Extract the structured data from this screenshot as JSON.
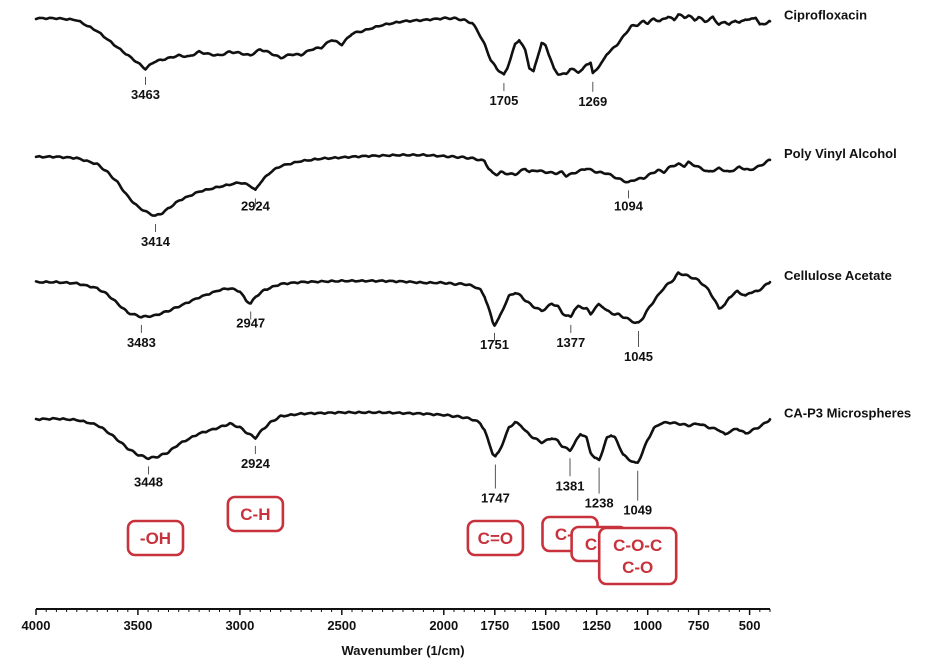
{
  "chart_data": {
    "type": "line",
    "xlabel": "Wavenumber (1/cm)",
    "xlim": [
      4000,
      400
    ],
    "x_reversed": true,
    "x_ticks": [
      4000,
      3500,
      3000,
      2500,
      2000,
      1750,
      1500,
      1250,
      1000,
      750,
      500
    ],
    "y_axis_shown": false,
    "grid": false,
    "legend": "series names at right end of each trace",
    "colors": {
      "trace": "#111111",
      "group_box": "#c8323c"
    },
    "series": [
      {
        "name": "Ciprofloxacin",
        "peak_labels": [
          "3463",
          "1705",
          "1269"
        ],
        "peaks": [
          3463,
          1705,
          1269
        ],
        "x": [
          4000,
          3900,
          3800,
          3700,
          3600,
          3520,
          3463,
          3420,
          3380,
          3300,
          3250,
          3200,
          3150,
          3100,
          3050,
          3000,
          2950,
          2900,
          2850,
          2800,
          2750,
          2700,
          2650,
          2600,
          2550,
          2500,
          2450,
          2400,
          2300,
          2200,
          2100,
          2000,
          1950,
          1900,
          1860,
          1830,
          1800,
          1770,
          1740,
          1720,
          1705,
          1690,
          1670,
          1650,
          1630,
          1600,
          1580,
          1560,
          1540,
          1520,
          1500,
          1480,
          1460,
          1440,
          1420,
          1400,
          1380,
          1360,
          1340,
          1320,
          1300,
          1280,
          1269,
          1250,
          1220,
          1200,
          1180,
          1150,
          1130,
          1100,
          1080,
          1050,
          1020,
          1000,
          970,
          940,
          900,
          870,
          850,
          820,
          800,
          770,
          750,
          720,
          700,
          680,
          650,
          620,
          600,
          570,
          550,
          520,
          500,
          470,
          450,
          420,
          400
        ],
        "y": [
          0.93,
          0.93,
          0.9,
          0.72,
          0.45,
          0.25,
          0.1,
          0.22,
          0.25,
          0.32,
          0.3,
          0.38,
          0.34,
          0.32,
          0.38,
          0.36,
          0.32,
          0.42,
          0.36,
          0.28,
          0.34,
          0.33,
          0.42,
          0.45,
          0.58,
          0.5,
          0.68,
          0.72,
          0.82,
          0.88,
          0.9,
          0.93,
          0.93,
          0.9,
          0.85,
          0.7,
          0.5,
          0.25,
          0.1,
          0.05,
          0.0,
          0.1,
          0.3,
          0.5,
          0.58,
          0.4,
          0.12,
          0.05,
          0.3,
          0.52,
          0.48,
          0.3,
          0.1,
          0.02,
          0.01,
          0.02,
          0.1,
          0.08,
          0.05,
          0.08,
          0.18,
          0.2,
          0.02,
          0.1,
          0.22,
          0.35,
          0.4,
          0.5,
          0.58,
          0.72,
          0.8,
          0.82,
          0.88,
          0.85,
          0.92,
          0.88,
          0.96,
          0.9,
          1.0,
          0.94,
          0.98,
          0.9,
          0.95,
          0.88,
          0.9,
          0.95,
          0.82,
          0.88,
          0.82,
          0.9,
          0.85,
          0.92,
          0.9,
          0.95,
          0.82,
          0.85,
          0.88
        ]
      },
      {
        "name": "Poly Vinyl Alcohol",
        "peak_labels": [
          "3414",
          "2924",
          "1094"
        ],
        "peaks": [
          3414,
          2924,
          1094
        ],
        "x": [
          4000,
          3900,
          3800,
          3700,
          3650,
          3600,
          3550,
          3500,
          3450,
          3414,
          3380,
          3300,
          3200,
          3100,
          3000,
          2950,
          2924,
          2900,
          2850,
          2800,
          2700,
          2600,
          2500,
          2400,
          2300,
          2200,
          2100,
          2000,
          1950,
          1900,
          1850,
          1800,
          1780,
          1760,
          1740,
          1720,
          1700,
          1650,
          1600,
          1580,
          1550,
          1500,
          1450,
          1420,
          1400,
          1380,
          1350,
          1300,
          1250,
          1200,
          1150,
          1120,
          1094,
          1060,
          1020,
          980,
          950,
          920,
          900,
          880,
          850,
          820,
          800,
          750,
          700,
          650,
          600,
          550,
          500,
          450,
          420,
          400
        ],
        "y": [
          0.97,
          0.97,
          0.95,
          0.85,
          0.72,
          0.55,
          0.32,
          0.15,
          0.05,
          0.0,
          0.05,
          0.25,
          0.4,
          0.48,
          0.55,
          0.5,
          0.42,
          0.55,
          0.72,
          0.82,
          0.9,
          0.94,
          0.96,
          0.98,
          0.99,
          1.0,
          1.0,
          0.98,
          0.97,
          0.96,
          0.94,
          0.9,
          0.78,
          0.7,
          0.68,
          0.72,
          0.7,
          0.68,
          0.78,
          0.72,
          0.75,
          0.72,
          0.7,
          0.72,
          0.66,
          0.68,
          0.72,
          0.78,
          0.72,
          0.7,
          0.62,
          0.58,
          0.55,
          0.6,
          0.62,
          0.7,
          0.75,
          0.72,
          0.78,
          0.82,
          0.85,
          0.82,
          0.88,
          0.8,
          0.72,
          0.78,
          0.72,
          0.8,
          0.75,
          0.82,
          0.88,
          0.92
        ]
      },
      {
        "name": "Cellulose Acetate",
        "peak_labels": [
          "3483",
          "2947",
          "1751",
          "1377",
          "1045"
        ],
        "peaks": [
          3483,
          2947,
          1751,
          1377,
          1045
        ],
        "x": [
          4000,
          3900,
          3800,
          3700,
          3650,
          3600,
          3550,
          3483,
          3420,
          3350,
          3300,
          3200,
          3100,
          3050,
          3000,
          2970,
          2947,
          2920,
          2880,
          2800,
          2700,
          2600,
          2500,
          2400,
          2300,
          2200,
          2100,
          2000,
          1950,
          1900,
          1850,
          1820,
          1800,
          1780,
          1760,
          1751,
          1730,
          1700,
          1680,
          1650,
          1620,
          1600,
          1560,
          1520,
          1500,
          1470,
          1440,
          1420,
          1400,
          1377,
          1360,
          1340,
          1300,
          1280,
          1260,
          1240,
          1220,
          1200,
          1180,
          1160,
          1140,
          1120,
          1100,
          1080,
          1060,
          1045,
          1020,
          990,
          960,
          930,
          900,
          870,
          850,
          800,
          750,
          700,
          680,
          650,
          620,
          600,
          560,
          520,
          500,
          460,
          430,
          400
        ],
        "y": [
          0.85,
          0.85,
          0.83,
          0.75,
          0.65,
          0.5,
          0.35,
          0.28,
          0.3,
          0.38,
          0.45,
          0.6,
          0.72,
          0.75,
          0.7,
          0.55,
          0.5,
          0.62,
          0.72,
          0.82,
          0.85,
          0.86,
          0.87,
          0.87,
          0.87,
          0.86,
          0.84,
          0.84,
          0.82,
          0.82,
          0.78,
          0.72,
          0.62,
          0.42,
          0.2,
          0.15,
          0.25,
          0.48,
          0.62,
          0.68,
          0.62,
          0.55,
          0.45,
          0.38,
          0.42,
          0.5,
          0.45,
          0.35,
          0.3,
          0.28,
          0.4,
          0.45,
          0.42,
          0.32,
          0.42,
          0.48,
          0.45,
          0.38,
          0.35,
          0.32,
          0.32,
          0.28,
          0.25,
          0.22,
          0.18,
          0.18,
          0.28,
          0.45,
          0.58,
          0.72,
          0.82,
          0.9,
          1.0,
          0.95,
          0.88,
          0.72,
          0.6,
          0.42,
          0.48,
          0.6,
          0.7,
          0.62,
          0.68,
          0.7,
          0.78,
          0.85
        ]
      },
      {
        "name": "CA-P3 Microspheres",
        "peak_labels": [
          "3448",
          "2924",
          "1747",
          "1381",
          "1238",
          "1049"
        ],
        "peaks": [
          3448,
          2924,
          1747,
          1381,
          1238,
          1049
        ],
        "x": [
          4000,
          3900,
          3800,
          3700,
          3650,
          3600,
          3550,
          3500,
          3448,
          3400,
          3350,
          3300,
          3200,
          3100,
          3050,
          3000,
          2960,
          2924,
          2890,
          2850,
          2800,
          2700,
          2600,
          2500,
          2400,
          2300,
          2200,
          2100,
          2000,
          1950,
          1900,
          1850,
          1820,
          1800,
          1780,
          1760,
          1747,
          1730,
          1700,
          1680,
          1650,
          1620,
          1600,
          1560,
          1520,
          1500,
          1470,
          1440,
          1420,
          1400,
          1381,
          1360,
          1330,
          1300,
          1280,
          1260,
          1238,
          1220,
          1200,
          1180,
          1160,
          1140,
          1120,
          1100,
          1080,
          1060,
          1049,
          1030,
          1000,
          970,
          940,
          900,
          850,
          800,
          750,
          700,
          650,
          620,
          600,
          560,
          520,
          500,
          470,
          440,
          420,
          400
        ],
        "y": [
          0.85,
          0.86,
          0.84,
          0.76,
          0.65,
          0.52,
          0.38,
          0.28,
          0.22,
          0.25,
          0.32,
          0.45,
          0.62,
          0.72,
          0.78,
          0.72,
          0.62,
          0.55,
          0.68,
          0.8,
          0.9,
          0.94,
          0.95,
          0.96,
          0.96,
          0.96,
          0.95,
          0.94,
          0.92,
          0.9,
          0.88,
          0.84,
          0.78,
          0.68,
          0.48,
          0.3,
          0.25,
          0.32,
          0.55,
          0.72,
          0.8,
          0.75,
          0.66,
          0.55,
          0.48,
          0.5,
          0.55,
          0.5,
          0.42,
          0.38,
          0.35,
          0.45,
          0.62,
          0.55,
          0.32,
          0.22,
          0.2,
          0.35,
          0.55,
          0.6,
          0.55,
          0.42,
          0.28,
          0.22,
          0.18,
          0.14,
          0.15,
          0.28,
          0.52,
          0.7,
          0.78,
          0.8,
          0.78,
          0.75,
          0.78,
          0.72,
          0.68,
          0.6,
          0.65,
          0.7,
          0.62,
          0.65,
          0.7,
          0.75,
          0.8,
          0.85
        ]
      }
    ],
    "annotations": [
      {
        "text": "-OH",
        "lines": [
          "-OH"
        ],
        "target": 3414
      },
      {
        "text": "C-H",
        "lines": [
          "C-H"
        ],
        "target": 2924
      },
      {
        "text": "C=O",
        "lines": [
          "C=O"
        ],
        "target": 1747
      },
      {
        "text": "C-C",
        "lines": [
          "C-C"
        ],
        "target": 1381
      },
      {
        "text": "C-F",
        "lines": [
          "C-F"
        ],
        "target": 1238
      },
      {
        "text": "C-O-C C-O",
        "lines": [
          "C-O-C",
          "C-O"
        ],
        "target": 1049
      }
    ]
  }
}
